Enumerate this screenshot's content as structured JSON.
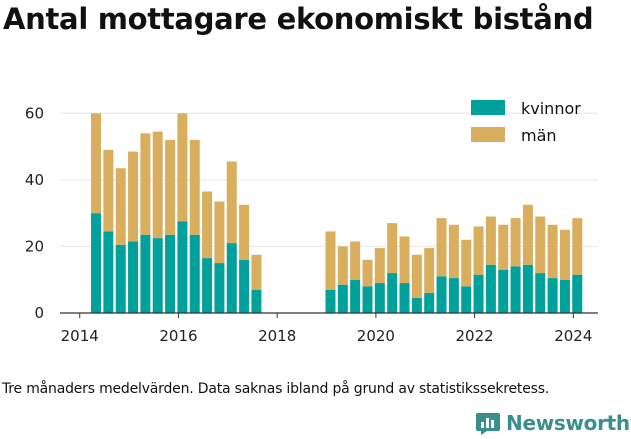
{
  "title": "Antal mottagare ekonomiskt bistånd",
  "footnote": "Tre månaders medelvärden. Data saknas ibland på grund av statistikssekretess.",
  "logo": {
    "text": "Newsworthy",
    "icon": "newsworthy-chart-icon"
  },
  "colors": {
    "kvinnor": "#00a19a",
    "man": "#d9ae5f",
    "axis": "#333333",
    "grid": "#e6e6e6"
  },
  "chart_data": {
    "type": "bar",
    "stacked": true,
    "title": "Antal mottagare ekonomiskt bistånd",
    "xlabel": "",
    "ylabel": "",
    "ylim": [
      0,
      67
    ],
    "xlim": [
      2013.6,
      2024.5
    ],
    "yticks": [
      "0",
      "20",
      "40",
      "60"
    ],
    "xticks": [
      "2014",
      "2016",
      "2018",
      "2020",
      "2022",
      "2024"
    ],
    "grid": true,
    "legend_position": "top-right",
    "x": [
      2014.33,
      2014.58,
      2014.83,
      2015.08,
      2015.33,
      2015.58,
      2015.83,
      2016.08,
      2016.33,
      2016.58,
      2016.83,
      2017.08,
      2017.33,
      2017.58,
      2019.08,
      2019.33,
      2019.58,
      2019.83,
      2020.08,
      2020.33,
      2020.58,
      2020.83,
      2021.08,
      2021.33,
      2021.58,
      2021.83,
      2022.08,
      2022.33,
      2022.58,
      2022.83,
      2023.08,
      2023.33,
      2023.58,
      2023.83,
      2024.08
    ],
    "series": [
      {
        "name": "kvinnor",
        "values": [
          30,
          24.5,
          20.5,
          21.5,
          23.5,
          22.5,
          23.5,
          27.5,
          23.5,
          16.5,
          15,
          21,
          16,
          7,
          7,
          8.5,
          10,
          8,
          9,
          12,
          9,
          4.5,
          6,
          11,
          10.5,
          8,
          11.5,
          14.5,
          13,
          14,
          14.5,
          12,
          10.5,
          10,
          11.5
        ]
      },
      {
        "name": "män",
        "values": [
          30,
          24.5,
          23,
          27,
          30.5,
          32,
          28.5,
          32.5,
          28.5,
          20,
          18.5,
          24.5,
          16.5,
          10.5,
          17.5,
          11.5,
          11.5,
          8,
          10.5,
          15,
          14,
          13,
          13.5,
          17.5,
          16,
          14,
          14.5,
          14.5,
          13.5,
          14.5,
          18,
          17,
          16,
          15,
          17
        ]
      }
    ]
  }
}
